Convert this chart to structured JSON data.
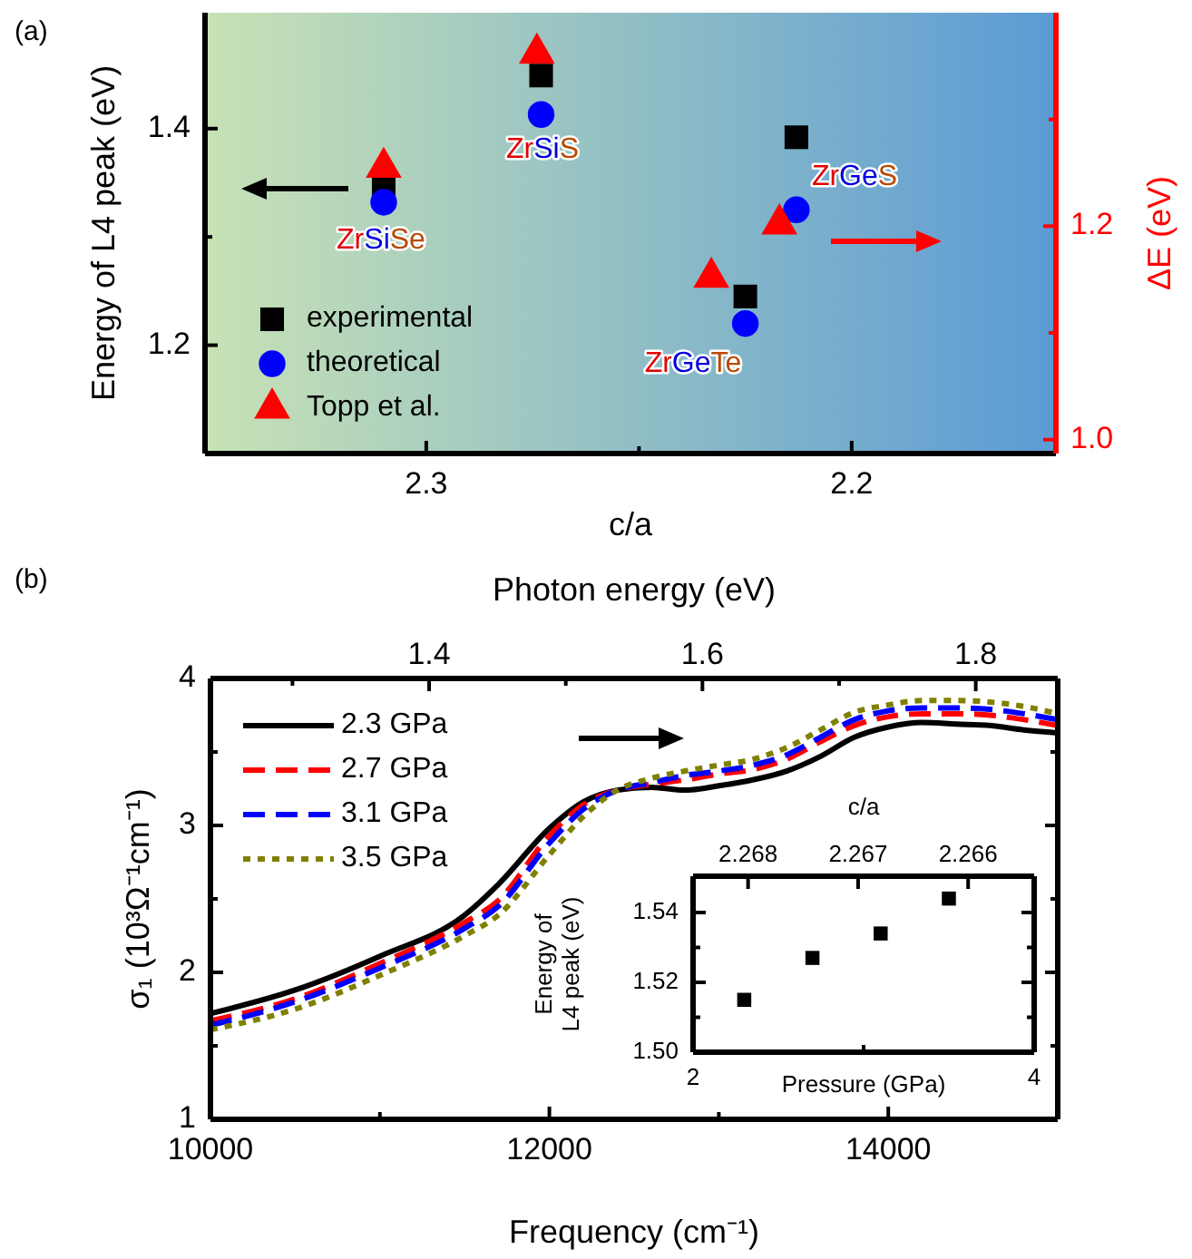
{
  "chart_data": [
    {
      "type": "scatter",
      "title": "(a)",
      "xlabel": "c/a",
      "ylabel": "Energy of L4 peak (eV)",
      "y2label": "ΔE (eV)",
      "xlim": [
        2.352,
        2.152
      ],
      "xticks": [
        2.3,
        {
          "value": 2.25,
          "label": null
        },
        2.2
      ],
      "ylim": [
        1.1,
        1.507
      ],
      "yticks": [
        1.2,
        {
          "value": 1.3,
          "label": null
        },
        1.4
      ],
      "y2lim": [
        0.987,
        1.4
      ],
      "y2ticks": [
        {
          "value": 1.0,
          "label": "1.0"
        },
        {
          "value": 1.1,
          "label": null
        },
        1.2,
        {
          "value": 1.3,
          "label": null
        }
      ],
      "x": [
        2.31,
        2.273,
        2.225,
        2.213
      ],
      "series": [
        {
          "name": "experimental",
          "color": "#000000",
          "marker": "square",
          "values": [
            1.344,
            1.449,
            1.245,
            1.392
          ]
        },
        {
          "name": "theoretical",
          "color": "#0000ff",
          "marker": "circle",
          "values": [
            1.332,
            1.413,
            1.22,
            1.325
          ]
        },
        {
          "name": "Topp et al.",
          "color": "#ff0000",
          "marker": "triangle",
          "axis": "y2",
          "x": [
            2.31,
            2.274,
            2.233,
            2.217
          ],
          "values": [
            1.255,
            1.362,
            1.152,
            1.202
          ]
        }
      ],
      "annotations": [
        "ZrSiSe",
        "ZrSiS",
        "ZrGeTe",
        "ZrGeS"
      ],
      "legend": "bottom left"
    },
    {
      "type": "line",
      "title": "(b)",
      "xlabel": "Frequency (cm⁻¹)",
      "ylabel": "σ₁ (10³Ω⁻¹cm⁻¹)",
      "x2label": "Photon energy (eV)",
      "xlim": [
        10000,
        15000
      ],
      "xticks": [
        10000,
        {
          "value": 11000,
          "label": null
        },
        12000,
        {
          "value": 13000,
          "label": null
        },
        14000
      ],
      "x2lim": [
        1.24,
        1.86
      ],
      "x2ticks": [
        {
          "value": 1.3,
          "label": null
        },
        1.4,
        {
          "value": 1.5,
          "label": null
        },
        1.6,
        {
          "value": 1.7,
          "label": null
        },
        1.8
      ],
      "ylim": [
        1,
        4
      ],
      "yticks": [
        1,
        {
          "value": 1.5,
          "label": null
        },
        2,
        {
          "value": 2.5,
          "label": null
        },
        3,
        {
          "value": 3.5,
          "label": null
        },
        4
      ],
      "x": [
        10000,
        10500,
        11000,
        11500,
        11700,
        12000,
        12200,
        12400,
        12600,
        12800,
        13000,
        13200,
        13400,
        13600,
        13800,
        14000,
        14200,
        14400,
        14600,
        14800,
        15000
      ],
      "series": [
        {
          "name": "2.3 GPa",
          "color": "#000000",
          "line_style": "solid",
          "values": [
            1.72,
            1.88,
            2.11,
            2.39,
            2.6,
            2.98,
            3.16,
            3.24,
            3.26,
            3.24,
            3.27,
            3.31,
            3.37,
            3.47,
            3.6,
            3.67,
            3.7,
            3.69,
            3.68,
            3.65,
            3.63
          ]
        },
        {
          "name": "2.7 GPa",
          "color": "#ff0000",
          "line_style": "dashed",
          "values": [
            1.67,
            1.82,
            2.06,
            2.34,
            2.49,
            2.93,
            3.14,
            3.24,
            3.28,
            3.31,
            3.35,
            3.38,
            3.45,
            3.57,
            3.68,
            3.74,
            3.76,
            3.76,
            3.75,
            3.72,
            3.68
          ]
        },
        {
          "name": "3.1 GPa",
          "color": "#0000ff",
          "line_style": "dashed",
          "values": [
            1.64,
            1.8,
            2.03,
            2.3,
            2.45,
            2.88,
            3.11,
            3.24,
            3.29,
            3.34,
            3.37,
            3.41,
            3.48,
            3.6,
            3.72,
            3.78,
            3.8,
            3.8,
            3.79,
            3.76,
            3.72
          ]
        },
        {
          "name": "3.5 GPa",
          "color": "#808000",
          "line_style": "dotted",
          "values": [
            1.61,
            1.75,
            1.98,
            2.25,
            2.39,
            2.8,
            3.06,
            3.24,
            3.32,
            3.37,
            3.41,
            3.45,
            3.53,
            3.65,
            3.77,
            3.82,
            3.85,
            3.85,
            3.84,
            3.81,
            3.76
          ]
        }
      ],
      "legend": "top left"
    },
    {
      "type": "scatter",
      "xlabel": "Pressure (GPa)",
      "ylabel": "Energy of\nL4 peak (eV)",
      "x2label": "c/a",
      "xlim": [
        2,
        4
      ],
      "xticks": [
        2,
        {
          "value": 3,
          "label": null
        },
        4
      ],
      "x2lim": [
        2.2685,
        2.2654
      ],
      "x2ticks": [
        2.268,
        2.267,
        2.266
      ],
      "ylim": [
        1.5,
        1.5504
      ],
      "yticks": [
        {
          "value": 1.5,
          "label": "1.50"
        },
        {
          "value": 1.51,
          "label": null
        },
        1.52,
        {
          "value": 1.53,
          "label": null
        },
        1.54
      ],
      "x": [
        2.3,
        2.7,
        3.1,
        3.5
      ],
      "series": [
        {
          "color": "#000000",
          "marker": "square",
          "values": [
            1.515,
            1.527,
            1.534,
            1.544
          ]
        }
      ]
    }
  ]
}
